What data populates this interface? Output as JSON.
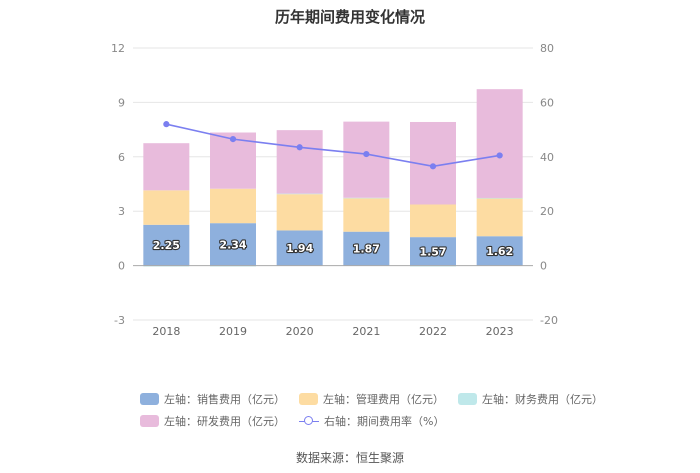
{
  "chart_data": {
    "type": "bar",
    "title": "历年期间费用变化情况",
    "categories": [
      "2018",
      "2019",
      "2020",
      "2021",
      "2022",
      "2023"
    ],
    "stacked": true,
    "left_axis": {
      "min": -3,
      "max": 12,
      "ticks": [
        -3,
        0,
        3,
        6,
        9,
        12
      ]
    },
    "right_axis": {
      "min": -20,
      "max": 80,
      "ticks": [
        -20,
        0,
        20,
        40,
        60,
        80
      ]
    },
    "series": [
      {
        "name": "左轴：销售费用（亿元）",
        "axis": "left",
        "type": "bar",
        "color": "#8eb0dd",
        "values": [
          2.25,
          2.34,
          1.94,
          1.87,
          1.57,
          1.62
        ],
        "show_labels": true
      },
      {
        "name": "左轴：管理费用（亿元）",
        "axis": "left",
        "type": "bar",
        "color": "#fddca2",
        "values": [
          1.9,
          1.9,
          2.0,
          1.85,
          1.8,
          2.1
        ]
      },
      {
        "name": "左轴：财务费用（亿元）",
        "axis": "left",
        "type": "bar",
        "color": "#bfe8ea",
        "values": [
          -0.05,
          -0.05,
          0.03,
          0.02,
          -0.05,
          0.01
        ]
      },
      {
        "name": "左轴：研发费用（亿元）",
        "axis": "left",
        "type": "bar",
        "color": "#e8bbdc",
        "values": [
          2.6,
          3.1,
          3.5,
          4.2,
          4.55,
          6.0
        ]
      },
      {
        "name": "右轴：期间费用率（%）",
        "axis": "right",
        "type": "line",
        "color": "#7b7ff0",
        "values": [
          52.0,
          46.5,
          43.5,
          41.0,
          36.5,
          40.5
        ]
      }
    ],
    "legend_position": "bottom",
    "source": "数据来源：恒生聚源"
  }
}
